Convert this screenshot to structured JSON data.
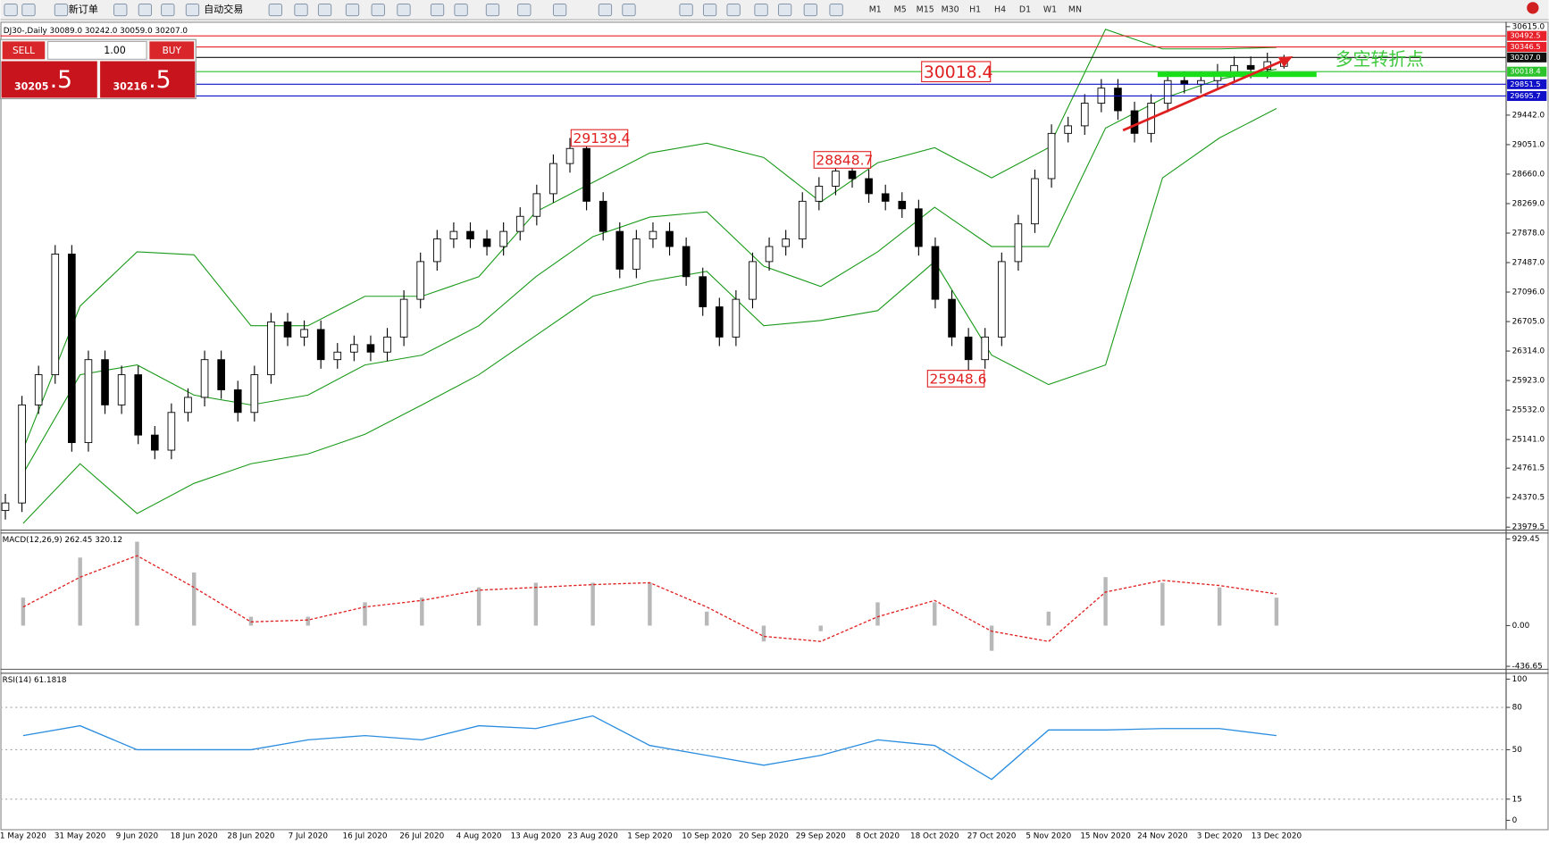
{
  "toolbar": {
    "new_order": "新订单",
    "auto_trading": "自动交易",
    "timeframes": [
      "M1",
      "M5",
      "M15",
      "M30",
      "H1",
      "H4",
      "D1",
      "W1",
      "MN"
    ]
  },
  "order_panel": {
    "sell": "SELL",
    "lots": "1.00",
    "buy": "BUY",
    "bid_main": "30205",
    "bid_frac": ".5",
    "ask_main": "30216",
    "ask_frac": ".5"
  },
  "chart_data": [
    {
      "type": "candlestick",
      "title": "DJ30-,Daily  30089.0 30242.0 30059.0 30207.0",
      "x_labels": [
        "1 May 2020",
        "31 May 2020",
        "9 Jun 2020",
        "18 Jun 2020",
        "28 Jun 2020",
        "7 Jul 2020",
        "16 Jul 2020",
        "26 Jul 2020",
        "4 Aug 2020",
        "13 Aug 2020",
        "23 Aug 2020",
        "1 Sep 2020",
        "10 Sep 2020",
        "20 Sep 2020",
        "29 Sep 2020",
        "8 Oct 2020",
        "18 Oct 2020",
        "27 Oct 2020",
        "5 Nov 2020",
        "15 Nov 2020",
        "24 Nov 2020",
        "3 Dec 2020",
        "13 Dec 2020"
      ],
      "candles": [
        [
          24200,
          24420,
          24080,
          24300
        ],
        [
          24300,
          25720,
          24180,
          25600
        ],
        [
          25600,
          26120,
          25480,
          26000
        ],
        [
          26000,
          27720,
          25880,
          27600
        ],
        [
          27600,
          27720,
          24980,
          25100
        ],
        [
          25100,
          26320,
          24980,
          26200
        ],
        [
          26200,
          26320,
          25480,
          25600
        ],
        [
          25600,
          26120,
          25480,
          26000
        ],
        [
          26000,
          26120,
          25080,
          25200
        ],
        [
          25200,
          25320,
          24880,
          25000
        ],
        [
          25000,
          25620,
          24880,
          25500
        ],
        [
          25500,
          25820,
          25380,
          25700
        ],
        [
          25700,
          26320,
          25580,
          26200
        ],
        [
          26200,
          26320,
          25680,
          25800
        ],
        [
          25800,
          25920,
          25380,
          25500
        ],
        [
          25500,
          26120,
          25380,
          26000
        ],
        [
          26000,
          26820,
          25880,
          26700
        ],
        [
          26700,
          26820,
          26380,
          26500
        ],
        [
          26500,
          26720,
          26380,
          26600
        ],
        [
          26600,
          26720,
          26080,
          26200
        ],
        [
          26200,
          26420,
          26080,
          26300
        ],
        [
          26300,
          26520,
          26180,
          26400
        ],
        [
          26400,
          26520,
          26180,
          26300
        ],
        [
          26300,
          26620,
          26180,
          26500
        ],
        [
          26500,
          27120,
          26380,
          27000
        ],
        [
          27000,
          27620,
          26880,
          27500
        ],
        [
          27500,
          27920,
          27380,
          27800
        ],
        [
          27800,
          28020,
          27680,
          27900
        ],
        [
          27900,
          28020,
          27680,
          27800
        ],
        [
          27800,
          27920,
          27580,
          27700
        ],
        [
          27700,
          28020,
          27580,
          27900
        ],
        [
          27900,
          28220,
          27780,
          28100
        ],
        [
          28100,
          28520,
          27980,
          28400
        ],
        [
          28400,
          28920,
          28280,
          28800
        ],
        [
          28800,
          29139.4,
          28680,
          29000
        ],
        [
          29000,
          29120,
          28180,
          28300
        ],
        [
          28300,
          28420,
          27780,
          27900
        ],
        [
          27900,
          28020,
          27280,
          27400
        ],
        [
          27400,
          27920,
          27280,
          27800
        ],
        [
          27800,
          28020,
          27680,
          27900
        ],
        [
          27900,
          28020,
          27580,
          27700
        ],
        [
          27700,
          27820,
          27180,
          27300
        ],
        [
          27300,
          27420,
          26780,
          26900
        ],
        [
          26900,
          27020,
          26380,
          26500
        ],
        [
          26500,
          27120,
          26380,
          27000
        ],
        [
          27000,
          27620,
          26880,
          27500
        ],
        [
          27500,
          27820,
          27380,
          27700
        ],
        [
          27700,
          27920,
          27580,
          27800
        ],
        [
          27800,
          28420,
          27680,
          28300
        ],
        [
          28300,
          28620,
          28180,
          28500
        ],
        [
          28500,
          28848.7,
          28380,
          28700
        ],
        [
          28700,
          28820,
          28480,
          28600
        ],
        [
          28600,
          28720,
          28280,
          28400
        ],
        [
          28400,
          28520,
          28180,
          28300
        ],
        [
          28300,
          28420,
          28080,
          28200
        ],
        [
          28200,
          28320,
          27580,
          27700
        ],
        [
          27700,
          27820,
          26880,
          27000
        ],
        [
          27000,
          27120,
          26380,
          26500
        ],
        [
          26500,
          26620,
          25948.6,
          26200
        ],
        [
          26200,
          26620,
          26080,
          26500
        ],
        [
          26500,
          27620,
          26380,
          27500
        ],
        [
          27500,
          28120,
          27380,
          28000
        ],
        [
          28000,
          28720,
          27880,
          28600
        ],
        [
          28600,
          29320,
          28480,
          29200
        ],
        [
          29200,
          29420,
          29080,
          29300
        ],
        [
          29300,
          29720,
          29180,
          29600
        ],
        [
          29600,
          29920,
          29480,
          29800
        ],
        [
          29800,
          29920,
          29380,
          29500
        ],
        [
          29500,
          29620,
          29080,
          29200
        ],
        [
          29200,
          29720,
          29080,
          29600
        ],
        [
          29600,
          30020,
          29480,
          29900
        ],
        [
          29900,
          30020,
          29730,
          29850
        ],
        [
          29850,
          30020,
          29730,
          29900
        ],
        [
          29900,
          30120,
          29780,
          30000
        ],
        [
          30000,
          30220,
          29880,
          30100
        ],
        [
          30100,
          30220,
          29930,
          30050
        ],
        [
          30050,
          30270,
          29930,
          30150
        ],
        [
          30089,
          30242,
          30059,
          30207
        ]
      ],
      "up_color": "#ffffff",
      "down_color": "#000000",
      "bollinger": {
        "color": "#1a9a1a",
        "upper": [
          25010,
          26910,
          27630,
          27590,
          26650,
          26650,
          27040,
          27040,
          27300,
          28160,
          28550,
          28940,
          29070,
          28880,
          28290,
          28810,
          29010,
          28610,
          29010,
          30580,
          30320,
          30320,
          30340
        ],
        "middle": [
          24690,
          26000,
          26130,
          25730,
          25600,
          25730,
          26130,
          26260,
          26650,
          27300,
          27830,
          28090,
          28160,
          27440,
          27170,
          27630,
          28220,
          27700,
          27700,
          29270,
          29660,
          29920,
          30050
        ],
        "lower": [
          24030,
          24820,
          24160,
          24560,
          24820,
          24950,
          25210,
          25600,
          26000,
          26520,
          27040,
          27240,
          27370,
          26650,
          26720,
          26850,
          27500,
          26260,
          25870,
          26130,
          28610,
          29140,
          29530
        ]
      },
      "ylim": [
        23979.5,
        30615
      ],
      "yticks": [
        {
          "value": 30615,
          "label": "30615.0"
        },
        {
          "value": 29442,
          "label": "29442.0"
        },
        {
          "value": 29051,
          "label": "29051.0"
        },
        {
          "value": 28660,
          "label": "28660.0"
        },
        {
          "value": 28269,
          "label": "28269.0"
        },
        {
          "value": 27878,
          "label": "27878.0"
        },
        {
          "value": 27487,
          "label": "27487.0"
        },
        {
          "value": 27096,
          "label": "27096.0"
        },
        {
          "value": 26705,
          "label": "26705.0"
        },
        {
          "value": 26314,
          "label": "26314.0"
        },
        {
          "value": 25923,
          "label": "25923.0"
        },
        {
          "value": 25532,
          "label": "25532.0"
        },
        {
          "value": 25141,
          "label": "25141.0"
        },
        24761.5,
        24370.5,
        23979.5
      ],
      "levels": [
        {
          "value": 30492.5,
          "color": "#e8202a"
        },
        {
          "value": 30346.5,
          "color": "#e8202a"
        },
        {
          "value": 30207,
          "label": "30207.0",
          "color": "#101010"
        },
        {
          "value": 30018.4,
          "color": "#2cc22c"
        },
        {
          "value": 29851.5,
          "color": "#1010c8"
        },
        {
          "value": 29695.7,
          "color": "#1010c8"
        }
      ],
      "annotations": [
        29139.4,
        28848.7,
        30018.4,
        25948.6
      ],
      "note": "多空转折点"
    },
    {
      "type": "macd",
      "title": "MACD(12,26,9) 262.45 320.12",
      "histogram": [
        300,
        730,
        900,
        570,
        95,
        95,
        250,
        300,
        410,
        460,
        460,
        460,
        150,
        -170,
        -60,
        250,
        250,
        -270,
        150,
        520,
        460,
        410,
        300
      ],
      "signal": [
        200,
        520,
        750,
        410,
        40,
        60,
        200,
        270,
        380,
        410,
        440,
        460,
        200,
        -115,
        -170,
        95,
        270,
        -60,
        -170,
        360,
        485,
        430,
        340
      ],
      "hist_color": "#b8b8b8",
      "signal_color": "#e02020",
      "ylim": [
        -436.65,
        929.45
      ],
      "yticks": [
        929.45,
        {
          "value": 0,
          "label": "0.00"
        },
        -436.65
      ]
    },
    {
      "type": "line",
      "title": "RSI(14) 61.1818",
      "values": [
        60,
        67,
        50,
        50,
        50,
        57,
        60,
        57,
        67,
        65,
        74,
        53,
        46,
        39,
        46,
        57,
        53,
        29,
        64,
        64,
        65,
        65,
        60
      ],
      "color": "#2a8de0",
      "ylim": [
        0,
        100
      ],
      "yticks": [
        100,
        80,
        50,
        15,
        0
      ]
    }
  ]
}
